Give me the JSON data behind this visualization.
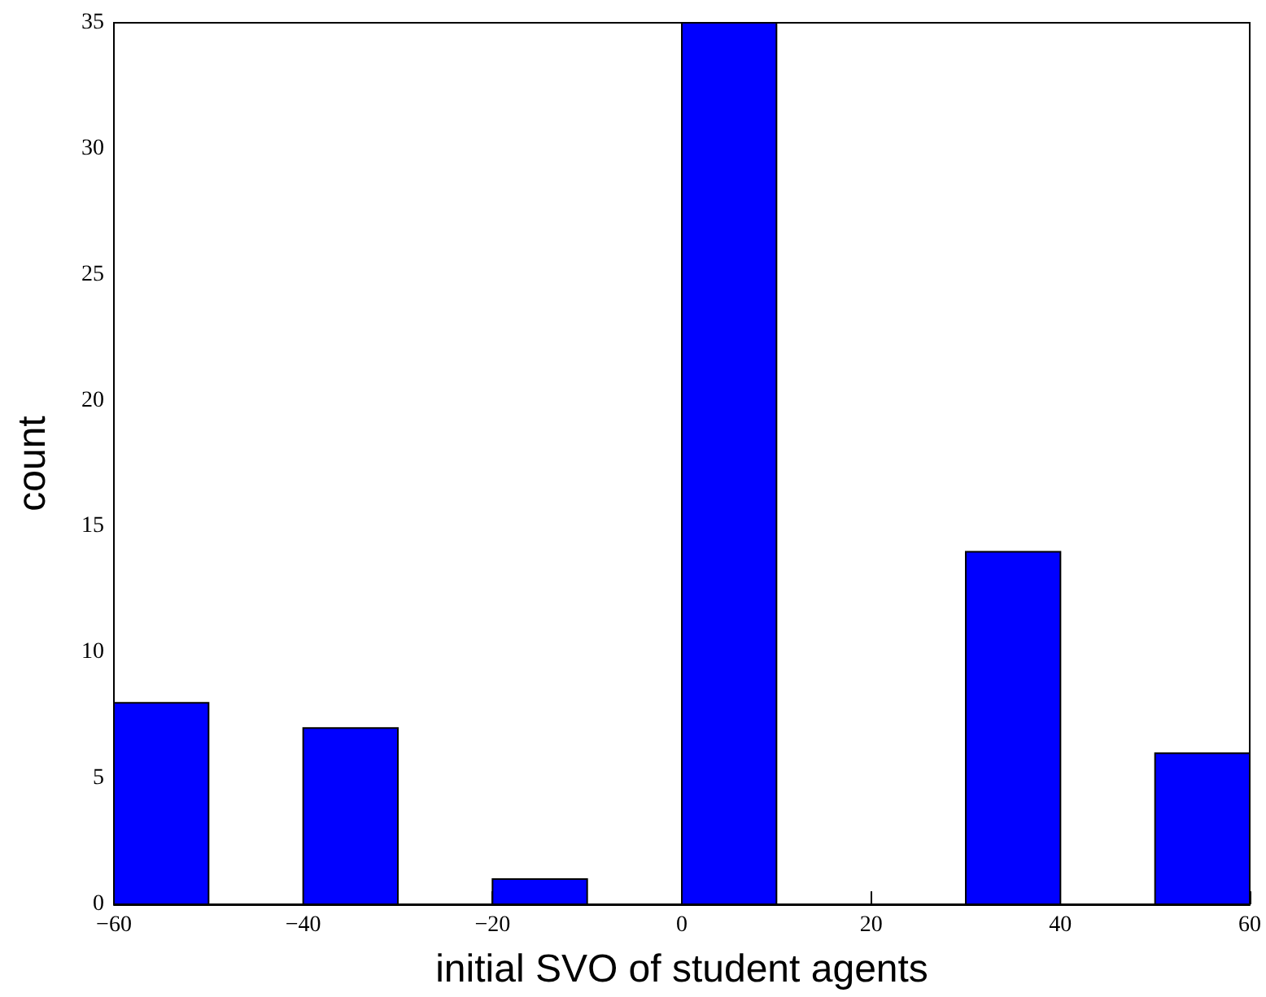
{
  "chart_data": {
    "type": "histogram",
    "xlabel": "initial SVO of student agents",
    "ylabel": "count",
    "bins": [
      -60,
      -50,
      -40,
      -30,
      -20,
      -10,
      0,
      10,
      20,
      30,
      40,
      50,
      60
    ],
    "values": [
      8,
      0,
      7,
      0,
      1,
      0,
      35,
      0,
      0,
      14,
      0,
      6
    ],
    "color": "#0000ff",
    "xlim": [
      -60,
      60
    ],
    "xticks": [
      {
        "value": -60,
        "label": "−60"
      },
      {
        "value": -40,
        "label": "−40"
      },
      {
        "value": -20,
        "label": "−20"
      },
      0,
      20,
      40,
      60
    ],
    "ylim": [
      0,
      35
    ],
    "yticks": [
      0,
      5,
      10,
      15,
      20,
      25,
      30,
      35
    ],
    "grid": false
  }
}
